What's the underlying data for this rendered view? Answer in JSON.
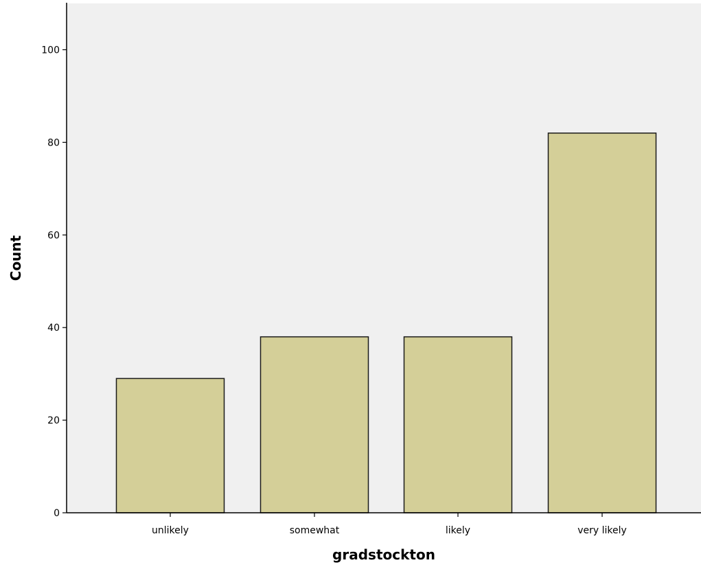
{
  "chart_data": {
    "type": "bar",
    "categories": [
      "unlikely",
      "somewhat",
      "likely",
      "very likely"
    ],
    "values": [
      29,
      38,
      38,
      82
    ],
    "xlabel": "gradstockton",
    "ylabel": "Count",
    "ylim": [
      0,
      110
    ],
    "yticks": [
      0,
      20,
      40,
      60,
      80,
      100
    ],
    "grid": false,
    "colors": {
      "plot_background": "#f0f0f0",
      "bar_fill": "#d4cf98",
      "bar_stroke": "#1a1a1a",
      "axis": "#000000"
    }
  }
}
